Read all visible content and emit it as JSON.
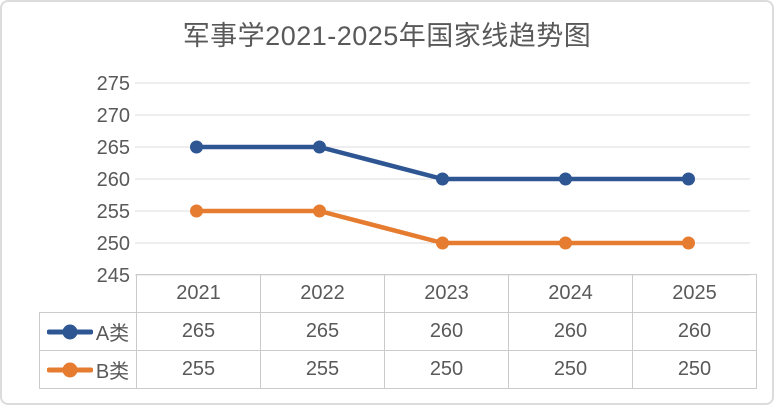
{
  "chart_data": {
    "type": "line",
    "title": "军事学2021-2025年国家线趋势图",
    "categories": [
      "2021",
      "2022",
      "2023",
      "2024",
      "2025"
    ],
    "series": [
      {
        "name": "A类",
        "color": "#2e5693",
        "values": [
          265,
          265,
          260,
          260,
          260
        ]
      },
      {
        "name": "B类",
        "color": "#e67c30",
        "values": [
          255,
          255,
          250,
          250,
          250
        ]
      }
    ],
    "ylim": [
      245,
      275
    ],
    "yticks": [
      245,
      250,
      255,
      260,
      265,
      270,
      275
    ],
    "xlabel": "",
    "ylabel": "",
    "grid": "horizontal",
    "legend_position": "data-table-left",
    "data_table_shown": true
  },
  "colors": {
    "grid_line": "#dedede",
    "table_border": "#cccaca",
    "text": "#595959",
    "card_border": "#dddbdb",
    "background": "#ffffff"
  }
}
